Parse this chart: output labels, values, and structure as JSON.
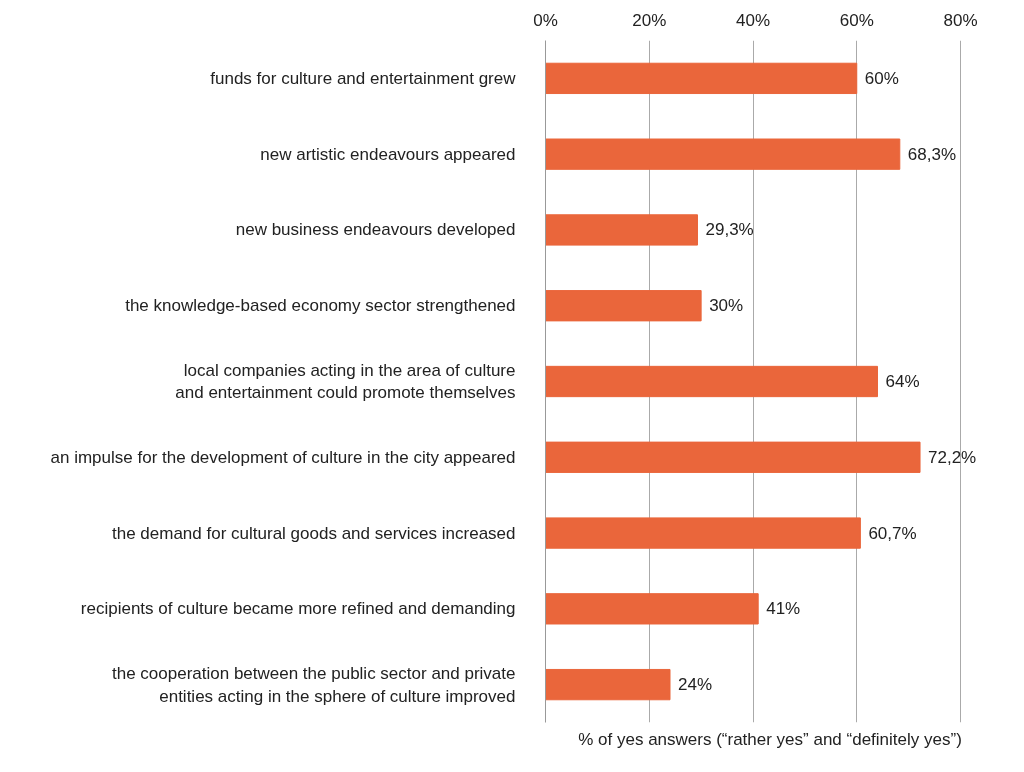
{
  "chart_data": {
    "type": "bar",
    "orientation": "horizontal",
    "xlabel": "% of yes answers (“rather yes” and “definitely yes”)",
    "categories": [
      "funds for culture and entertainment grew",
      "new artistic endeavours appeared",
      "new business endeavours developed",
      "the knowledge-based economy sector strengthened",
      "local companies acting in the area of culture\nand entertainment could promote themselves",
      "an impulse for the development of culture in the city appeared",
      "the demand for cultural goods and services increased",
      "recipients of culture became more refined and demanding",
      "the cooperation between the public sector and private\nentities acting in the sphere of culture improved"
    ],
    "values": [
      60,
      68.3,
      29.3,
      30,
      64,
      72.2,
      60.7,
      41,
      24
    ],
    "value_labels": [
      "60%",
      "68,3%",
      "29,3%",
      "30%",
      "64%",
      "72,2%",
      "60,7%",
      "41%",
      "24%"
    ],
    "color": "#ea663b",
    "xlim": [
      0,
      80
    ],
    "xticks": [
      {
        "value": 0,
        "label": "0%"
      },
      {
        "value": 20,
        "label": "20%"
      },
      {
        "value": 40,
        "label": "40%"
      },
      {
        "value": 60,
        "label": "60%"
      },
      {
        "value": 80,
        "label": "80%"
      }
    ],
    "grid": "x"
  }
}
